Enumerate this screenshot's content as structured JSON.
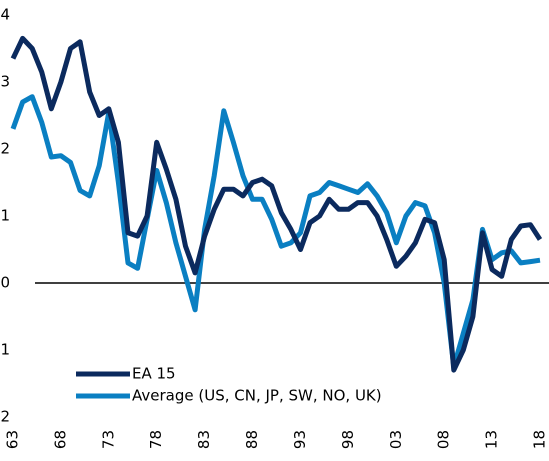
{
  "chart_data": {
    "type": "line",
    "categories": [
      "63",
      null,
      null,
      null,
      null,
      "68",
      null,
      null,
      null,
      null,
      "73",
      null,
      null,
      null,
      null,
      "78",
      null,
      null,
      null,
      null,
      "83",
      null,
      null,
      null,
      null,
      "88",
      null,
      null,
      null,
      null,
      "93",
      null,
      null,
      null,
      null,
      "98",
      null,
      null,
      null,
      null,
      "03",
      null,
      null,
      null,
      null,
      "08",
      null,
      null,
      null,
      null,
      "13",
      null,
      null,
      null,
      null,
      "18"
    ],
    "series": [
      {
        "name": "EA 15",
        "color": "#0b2a5e",
        "values": [
          3.35,
          3.65,
          3.5,
          3.15,
          2.6,
          3.0,
          3.5,
          3.6,
          2.85,
          2.5,
          2.6,
          2.1,
          0.75,
          0.7,
          1.0,
          2.1,
          1.7,
          1.25,
          0.55,
          0.15,
          0.7,
          1.1,
          1.4,
          1.4,
          1.3,
          1.5,
          1.55,
          1.45,
          1.05,
          0.8,
          0.5,
          0.9,
          1.0,
          1.25,
          1.1,
          1.1,
          1.2,
          1.2,
          1.0,
          0.65,
          0.25,
          0.4,
          0.6,
          0.95,
          0.9,
          0.35,
          -1.3,
          -1.0,
          -0.5,
          0.75,
          0.2,
          0.1,
          0.65,
          0.85,
          0.87,
          0.65
        ]
      },
      {
        "name": "Average (US, CN, JP, SW, NO, UK)",
        "color": "#0a7fc2",
        "values": [
          2.3,
          2.7,
          2.78,
          2.4,
          1.88,
          1.9,
          1.8,
          1.38,
          1.3,
          1.75,
          2.55,
          1.5,
          0.3,
          0.22,
          0.95,
          1.68,
          1.2,
          0.6,
          0.1,
          -0.4,
          0.8,
          1.6,
          2.57,
          2.1,
          1.6,
          1.25,
          1.25,
          0.95,
          0.55,
          0.6,
          0.75,
          1.3,
          1.35,
          1.5,
          1.45,
          1.4,
          1.35,
          1.48,
          1.3,
          1.05,
          0.6,
          1.0,
          1.2,
          1.15,
          0.75,
          0.0,
          -1.25,
          -0.75,
          -0.25,
          0.8,
          0.35,
          0.45,
          0.48,
          0.3,
          0.32,
          0.34
        ]
      }
    ],
    "ylim": [
      -2,
      4
    ],
    "yticks": [
      -2,
      -1,
      0,
      1,
      2,
      3,
      4
    ],
    "grid": false,
    "legend": "lower left"
  }
}
